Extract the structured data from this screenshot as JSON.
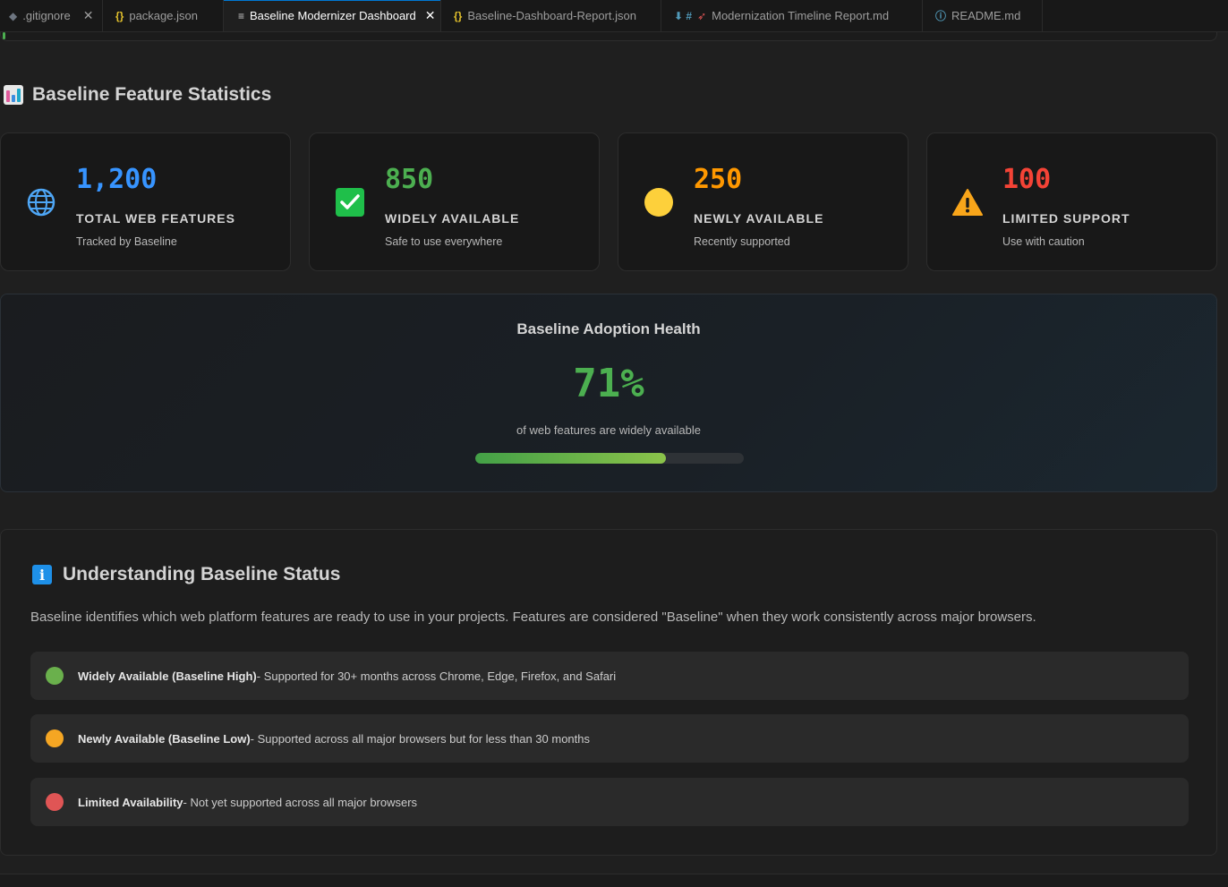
{
  "tabs": [
    {
      "icon": "◆",
      "label": ".gitignore",
      "closable": true,
      "active": false
    },
    {
      "icon": "{}",
      "label": "package.json",
      "closable": false,
      "active": false
    },
    {
      "icon": "≡",
      "label": "Baseline Modernizer Dashboard",
      "closable": true,
      "active": true
    },
    {
      "icon": "{}",
      "label": "Baseline-Dashboard-Report.json",
      "closable": false,
      "active": false
    },
    {
      "icon": "⬇ #",
      "label": "Modernization Timeline Report.md",
      "closable": false,
      "active": false
    },
    {
      "icon": "ⓘ",
      "label": "README.md",
      "closable": false,
      "active": false
    }
  ],
  "stats_section": {
    "title": "Baseline Feature Statistics",
    "cards": [
      {
        "icon": "globe-icon",
        "value": "1,200",
        "label": "TOTAL WEB FEATURES",
        "sub": "Tracked by Baseline",
        "color": "#3794ff"
      },
      {
        "icon": "check-icon",
        "value": "850",
        "label": "WIDELY AVAILABLE",
        "sub": "Safe to use everywhere",
        "color": "#4caf50"
      },
      {
        "icon": "circle-icon",
        "value": "250",
        "label": "NEWLY AVAILABLE",
        "sub": "Recently supported",
        "color": "#ff9800"
      },
      {
        "icon": "warning-icon",
        "value": "100",
        "label": "LIMITED SUPPORT",
        "sub": "Use with caution",
        "color": "#f44336"
      }
    ]
  },
  "health": {
    "title": "Baseline Adoption Health",
    "percent": "71%",
    "subtitle": "of web features are widely available",
    "progress": 0.71
  },
  "info_section": {
    "title": "Understanding Baseline Status",
    "description": "Baseline identifies which web platform features are ready to use in your projects. Features are considered \"Baseline\" when they work consistently across major browsers.",
    "statuses": [
      {
        "name": "Widely Available (Baseline High)",
        "text": " - Supported for 30+ months across Chrome, Edge, Firefox, and Safari",
        "color": "#6ab04c"
      },
      {
        "name": "Newly Available (Baseline Low)",
        "text": " - Supported across all major browsers but for less than 30 months",
        "color": "#f5a623"
      },
      {
        "name": "Limited Availability",
        "text": " - Not yet supported across all major browsers",
        "color": "#e05555"
      }
    ]
  }
}
